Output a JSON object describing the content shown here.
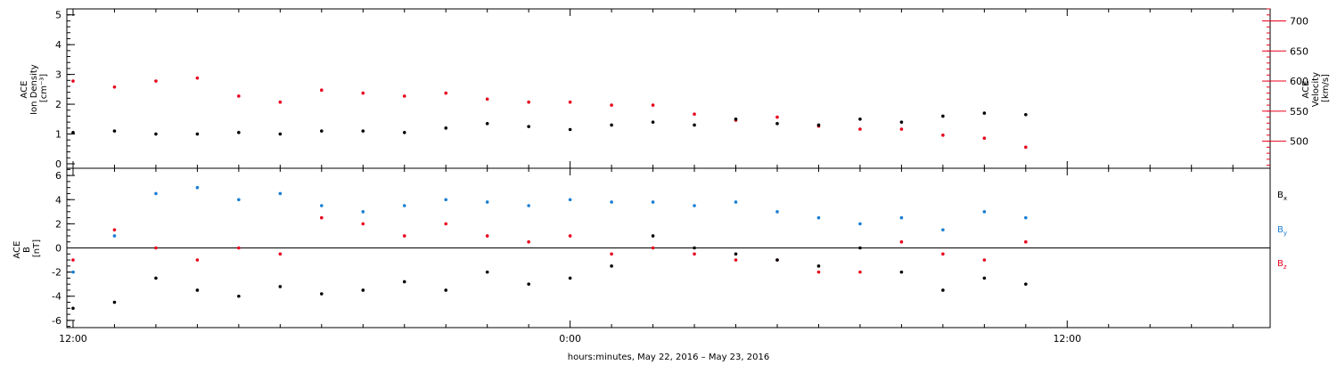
{
  "colors": {
    "density": "#000000",
    "velocity": "#e8001c",
    "bx": "#000000",
    "by": "#1a7fd4",
    "bz": "#e8001c"
  },
  "xlabel": "hours:minutes, May 22, 2016 – May 23, 2016",
  "chart_data": [
    {
      "type": "scatter",
      "panel": "plasma",
      "xlim": [
        11.85,
        40.9
      ],
      "x_tick_labels": [
        {
          "x": 12,
          "label": "12:00"
        },
        {
          "x": 24,
          "label": "0:00"
        },
        {
          "x": 36,
          "label": "12:00"
        }
      ],
      "left_axis": {
        "title_lines": [
          "ACE",
          "Ion Density",
          "[cm⁻³]"
        ],
        "ylim": [
          -0.15,
          5.2
        ],
        "ticks": [
          0,
          1,
          2,
          3,
          4,
          5
        ],
        "tick_labels": [
          "0",
          "1",
          "2",
          "3",
          "4",
          "5"
        ]
      },
      "right_axis": {
        "title_lines": [
          "ACE",
          "Velocity",
          "[km/s]"
        ],
        "ylim": [
          455,
          720
        ],
        "ticks": [
          500,
          550,
          600,
          650,
          700
        ],
        "tick_labels": [
          "500",
          "550",
          "600",
          "650",
          "700"
        ],
        "color": "#e8001c"
      },
      "series": [
        {
          "key": "density",
          "axis": "left",
          "x": [
            12.0,
            13.0,
            14.0,
            15.0,
            16.0,
            17.0,
            18.0,
            19.0,
            20.0,
            21.0,
            22.0,
            23.0,
            24.0,
            25.0,
            26.0,
            27.0,
            28.0,
            29.0,
            30.0,
            31.0,
            32.0,
            33.0,
            34.0,
            35.0
          ],
          "y": [
            1.05,
            1.1,
            1.0,
            1.0,
            1.05,
            1.0,
            1.1,
            1.1,
            1.05,
            1.2,
            1.35,
            1.25,
            1.15,
            1.3,
            1.4,
            1.3,
            1.5,
            1.35,
            1.3,
            1.5,
            1.4,
            1.6,
            1.7,
            1.65
          ]
        },
        {
          "key": "velocity",
          "axis": "right",
          "x": [
            12.0,
            13.0,
            14.0,
            15.0,
            16.0,
            17.0,
            18.0,
            19.0,
            20.0,
            21.0,
            22.0,
            23.0,
            24.0,
            25.0,
            26.0,
            27.0,
            28.0,
            29.0,
            30.0,
            31.0,
            32.0,
            33.0,
            34.0,
            35.0
          ],
          "y": [
            600,
            590,
            600,
            605,
            575,
            565,
            585,
            580,
            575,
            580,
            570,
            565,
            565,
            560,
            560,
            545,
            535,
            540,
            525,
            520,
            520,
            510,
            505,
            490
          ]
        }
      ]
    },
    {
      "type": "scatter",
      "panel": "magnetic",
      "xlim": [
        11.85,
        40.9
      ],
      "axis": {
        "title_lines": [
          "ACE",
          "B",
          "[nT]"
        ],
        "ylim": [
          -6.6,
          6.6
        ],
        "ticks": [
          -6,
          -4,
          -2,
          0,
          2,
          4,
          6
        ],
        "tick_labels": [
          "-6",
          "-4",
          "-2",
          "0",
          "2",
          "4",
          "6"
        ]
      },
      "legend": [
        {
          "label": "B",
          "subscript": "x",
          "key": "bx"
        },
        {
          "label": "B",
          "subscript": "y",
          "key": "by"
        },
        {
          "label": "B",
          "subscript": "z",
          "key": "bz"
        }
      ],
      "series": [
        {
          "key": "bx",
          "x": [
            12.0,
            13.0,
            14.0,
            15.0,
            16.0,
            17.0,
            18.0,
            19.0,
            20.0,
            21.0,
            22.0,
            23.0,
            24.0,
            25.0,
            26.0,
            27.0,
            28.0,
            29.0,
            30.0,
            31.0,
            32.0,
            33.0,
            34.0,
            35.0
          ],
          "y": [
            -5.0,
            -4.5,
            -2.5,
            -3.5,
            -4.0,
            -3.2,
            -3.8,
            -3.5,
            -2.8,
            -3.5,
            -2.0,
            -3.0,
            -2.5,
            -1.5,
            1.0,
            0.0,
            -0.5,
            -1.0,
            -1.5,
            0.0,
            -2.0,
            -3.5,
            -2.5,
            -3.0
          ]
        },
        {
          "key": "by",
          "x": [
            12.0,
            13.0,
            14.0,
            15.0,
            16.0,
            17.0,
            18.0,
            19.0,
            20.0,
            21.0,
            22.0,
            23.0,
            24.0,
            25.0,
            26.0,
            27.0,
            28.0,
            29.0,
            30.0,
            31.0,
            32.0,
            33.0,
            34.0,
            35.0
          ],
          "y": [
            -2.0,
            1.0,
            4.5,
            5.0,
            4.0,
            4.5,
            3.5,
            3.0,
            3.5,
            4.0,
            3.8,
            3.5,
            4.0,
            3.8,
            3.8,
            3.5,
            3.8,
            3.0,
            2.5,
            2.0,
            2.5,
            1.5,
            3.0,
            2.5
          ]
        },
        {
          "key": "bz",
          "x": [
            12.0,
            13.0,
            14.0,
            15.0,
            16.0,
            17.0,
            18.0,
            19.0,
            20.0,
            21.0,
            22.0,
            23.0,
            24.0,
            25.0,
            26.0,
            27.0,
            28.0,
            29.0,
            30.0,
            31.0,
            32.0,
            33.0,
            34.0,
            35.0
          ],
          "y": [
            -1.0,
            1.5,
            0.0,
            -1.0,
            0.0,
            -0.5,
            2.5,
            2.0,
            1.0,
            2.0,
            1.0,
            0.5,
            1.0,
            -0.5,
            0.0,
            -0.5,
            -1.0,
            -1.0,
            -2.0,
            -2.0,
            0.5,
            -0.5,
            -1.0,
            0.5
          ]
        }
      ]
    }
  ]
}
